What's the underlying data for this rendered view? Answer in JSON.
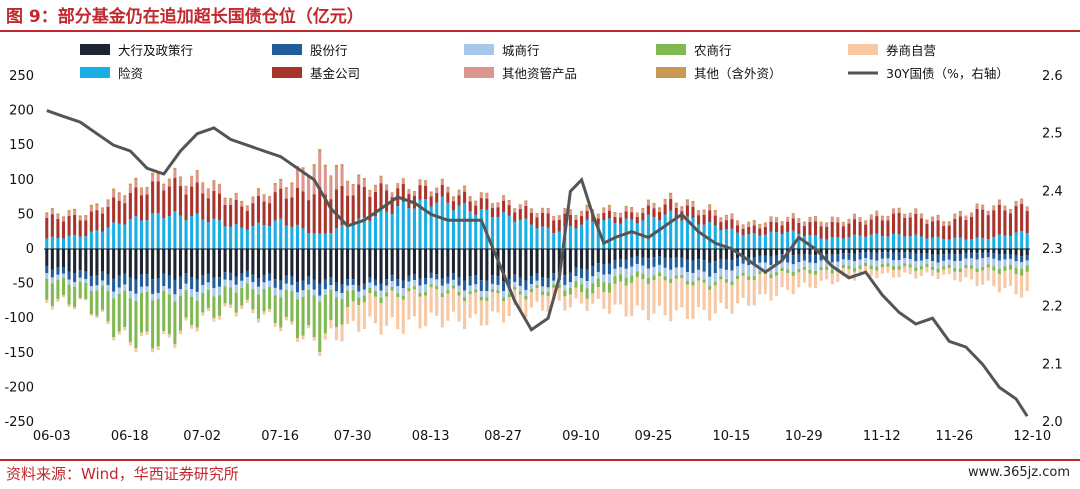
{
  "title": "图 9：部分基金仍在追加超长国债仓位（亿元）",
  "source": "资料来源：Wind，华西证券研究所",
  "watermark": "www.365jz.com",
  "chart_data": {
    "type": "bar",
    "stacked": true,
    "x_tick_labels": [
      "06-03",
      "06-18",
      "07-02",
      "07-16",
      "07-30",
      "08-13",
      "08-27",
      "09-10",
      "09-25",
      "10-15",
      "10-29",
      "11-12",
      "11-26",
      "12-10"
    ],
    "left_axis": {
      "ylim": [
        -250,
        250
      ],
      "ticks": [
        250,
        200,
        150,
        100,
        50,
        0,
        -50,
        -100,
        -150,
        -200,
        -250
      ]
    },
    "right_axis": {
      "ylim": [
        2.0,
        2.6
      ],
      "ticks": [
        "2.6",
        "2.5",
        "2.4",
        "2.3",
        "2.2",
        "2.1",
        "2.0"
      ]
    },
    "legend_position": "top",
    "anchors": [
      0,
      7,
      14,
      21,
      28,
      35,
      42,
      49,
      56,
      63,
      70,
      77,
      84,
      91,
      98,
      105,
      112,
      119,
      126,
      133,
      140,
      147,
      154,
      161,
      168,
      176
    ],
    "series": [
      {
        "name": "大行及政策行",
        "color": "#1e2432",
        "anchor_values": [
          -25,
          -35,
          -40,
          -40,
          -40,
          -35,
          -42,
          -45,
          -48,
          -42,
          -38,
          -42,
          -42,
          -38,
          -25,
          -12,
          -12,
          -18,
          -12,
          -8,
          -8,
          -5,
          -5,
          -8,
          -5,
          -10
        ]
      },
      {
        "name": "股份行",
        "color": "#1f5c99",
        "anchor_values": [
          -10,
          -12,
          -18,
          -20,
          -15,
          -10,
          -12,
          -15,
          -8,
          -10,
          -8,
          -15,
          -12,
          -12,
          -15,
          -12,
          -15,
          -18,
          -10,
          -12,
          -10,
          -10,
          -10,
          -10,
          -8,
          -8
        ]
      },
      {
        "name": "城商行",
        "color": "#a8c8ea",
        "anchor_values": [
          -8,
          -6,
          -10,
          -8,
          -12,
          -10,
          -10,
          -8,
          -8,
          -10,
          -10,
          -8,
          -8,
          -6,
          -10,
          -12,
          -12,
          -12,
          -15,
          -10,
          -10,
          -8,
          -8,
          -8,
          -12,
          -8
        ]
      },
      {
        "name": "农商行",
        "color": "#7fb950",
        "anchor_values": [
          -30,
          -25,
          -60,
          -65,
          -30,
          -25,
          -40,
          -65,
          -10,
          -5,
          -5,
          -5,
          -5,
          -5,
          -15,
          -10,
          -5,
          -5,
          -5,
          -5,
          -5,
          -5,
          -5,
          -5,
          -5,
          -10
        ]
      },
      {
        "name": "券商自营",
        "color": "#f7c8a4",
        "anchor_values": [
          -5,
          -2,
          -5,
          -5,
          -5,
          -5,
          -5,
          -5,
          -35,
          -45,
          -40,
          -35,
          -25,
          -20,
          -15,
          -45,
          -50,
          -40,
          -35,
          -25,
          -15,
          -10,
          -10,
          -8,
          -20,
          -30
        ]
      },
      {
        "name": "险资",
        "color": "#1aaee6",
        "anchor_values": [
          15,
          20,
          40,
          50,
          45,
          30,
          40,
          20,
          40,
          60,
          70,
          55,
          45,
          25,
          40,
          40,
          50,
          35,
          20,
          25,
          15,
          20,
          20,
          15,
          15,
          25
        ]
      },
      {
        "name": "基金公司",
        "color": "#a9342b",
        "anchor_values": [
          30,
          25,
          35,
          45,
          40,
          30,
          40,
          60,
          45,
          25,
          15,
          15,
          15,
          20,
          10,
          10,
          15,
          15,
          10,
          15,
          20,
          20,
          30,
          20,
          40,
          35
        ]
      },
      {
        "name": "其他资管产品",
        "color": "#dc968d",
        "anchor_values": [
          5,
          5,
          10,
          8,
          15,
          5,
          10,
          45,
          10,
          5,
          5,
          5,
          5,
          5,
          5,
          5,
          5,
          5,
          5,
          5,
          5,
          5,
          5,
          5,
          5,
          5
        ]
      },
      {
        "name": "其他（含外资）",
        "color": "#c99853",
        "anchor_values": [
          3,
          3,
          3,
          3,
          2,
          3,
          3,
          4,
          3,
          2,
          3,
          3,
          2,
          2,
          3,
          2,
          3,
          3,
          2,
          2,
          2,
          2,
          2,
          2,
          2,
          2
        ]
      },
      {
        "name": "30Y国债（%，右轴）",
        "type": "line",
        "axis": "right",
        "color": "#555555",
        "points": [
          [
            0,
            2.54
          ],
          [
            3,
            2.53
          ],
          [
            6,
            2.52
          ],
          [
            9,
            2.5
          ],
          [
            12,
            2.48
          ],
          [
            15,
            2.47
          ],
          [
            18,
            2.44
          ],
          [
            21,
            2.43
          ],
          [
            24,
            2.47
          ],
          [
            27,
            2.5
          ],
          [
            30,
            2.51
          ],
          [
            33,
            2.49
          ],
          [
            36,
            2.48
          ],
          [
            39,
            2.47
          ],
          [
            42,
            2.46
          ],
          [
            45,
            2.44
          ],
          [
            48,
            2.42
          ],
          [
            51,
            2.37
          ],
          [
            54,
            2.34
          ],
          [
            57,
            2.35
          ],
          [
            60,
            2.37
          ],
          [
            63,
            2.39
          ],
          [
            66,
            2.38
          ],
          [
            69,
            2.36
          ],
          [
            72,
            2.35
          ],
          [
            75,
            2.35
          ],
          [
            78,
            2.35
          ],
          [
            81,
            2.28
          ],
          [
            84,
            2.21
          ],
          [
            87,
            2.16
          ],
          [
            90,
            2.18
          ],
          [
            92,
            2.25
          ],
          [
            94,
            2.4
          ],
          [
            96,
            2.42
          ],
          [
            98,
            2.36
          ],
          [
            100,
            2.31
          ],
          [
            102,
            2.32
          ],
          [
            105,
            2.33
          ],
          [
            108,
            2.32
          ],
          [
            111,
            2.34
          ],
          [
            114,
            2.36
          ],
          [
            117,
            2.33
          ],
          [
            120,
            2.31
          ],
          [
            123,
            2.3
          ],
          [
            126,
            2.28
          ],
          [
            129,
            2.26
          ],
          [
            132,
            2.28
          ],
          [
            135,
            2.32
          ],
          [
            138,
            2.3
          ],
          [
            141,
            2.27
          ],
          [
            144,
            2.25
          ],
          [
            147,
            2.26
          ],
          [
            150,
            2.22
          ],
          [
            153,
            2.19
          ],
          [
            156,
            2.17
          ],
          [
            159,
            2.18
          ],
          [
            162,
            2.14
          ],
          [
            165,
            2.13
          ],
          [
            168,
            2.1
          ],
          [
            171,
            2.06
          ],
          [
            174,
            2.04
          ],
          [
            176,
            2.01
          ]
        ]
      }
    ]
  }
}
